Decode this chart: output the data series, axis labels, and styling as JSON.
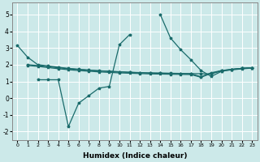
{
  "xlabel": "Humidex (Indice chaleur)",
  "xlim": [
    -0.5,
    23.5
  ],
  "ylim": [
    -2.5,
    5.7
  ],
  "yticks": [
    -2,
    -1,
    0,
    1,
    2,
    3,
    4,
    5
  ],
  "xticks": [
    0,
    1,
    2,
    3,
    4,
    5,
    6,
    7,
    8,
    9,
    10,
    11,
    12,
    13,
    14,
    15,
    16,
    17,
    18,
    19,
    20,
    21,
    22,
    23
  ],
  "bg_color": "#cce9e9",
  "line_color": "#1a6b6b",
  "grid_color": "#ffffff",
  "line_main": {
    "x": [
      0,
      1,
      2,
      3,
      4,
      5,
      6,
      7,
      8,
      9,
      10,
      11,
      12,
      13,
      14,
      15,
      16,
      17,
      18,
      19,
      20,
      21,
      22,
      23
    ],
    "y": [
      3.15,
      2.45,
      2.0,
      1.93,
      1.85,
      1.78,
      1.73,
      1.68,
      1.64,
      1.61,
      1.58,
      1.55,
      1.53,
      1.51,
      1.5,
      1.49,
      1.48,
      1.47,
      1.46,
      1.45,
      1.65,
      1.72,
      1.78,
      1.82
    ]
  },
  "line_spike": {
    "x": [
      2,
      3,
      4,
      5,
      6,
      7,
      8,
      9,
      10,
      11,
      12,
      13,
      14,
      15,
      16,
      17,
      18,
      19,
      20,
      21,
      22,
      23
    ],
    "y": [
      1.1,
      1.1,
      1.1,
      -1.7,
      -0.3,
      0.15,
      0.6,
      0.7,
      3.2,
      3.8,
      null,
      null,
      5.0,
      3.6,
      2.9,
      2.3,
      1.65,
      1.3,
      1.6,
      1.72,
      1.78,
      1.82
    ]
  },
  "line_flat1": {
    "x": [
      1,
      2,
      3,
      4,
      5,
      6,
      7,
      8,
      9,
      10,
      11,
      12,
      13,
      14,
      15,
      16,
      17,
      18,
      19,
      20,
      21,
      22,
      23
    ],
    "y": [
      2.0,
      1.95,
      1.88,
      1.82,
      1.76,
      1.71,
      1.67,
      1.63,
      1.6,
      1.57,
      1.54,
      1.52,
      1.5,
      1.49,
      1.48,
      1.47,
      1.46,
      1.28,
      1.52,
      1.65,
      1.72,
      1.78,
      1.82
    ]
  },
  "line_flat2": {
    "x": [
      1,
      2,
      3,
      4,
      5,
      6,
      7,
      8,
      9,
      10,
      11,
      12,
      13,
      14,
      15,
      16,
      17,
      18,
      19,
      20,
      21,
      22,
      23
    ],
    "y": [
      1.95,
      1.9,
      1.83,
      1.76,
      1.7,
      1.65,
      1.61,
      1.57,
      1.54,
      1.51,
      1.49,
      1.47,
      1.45,
      1.44,
      1.43,
      1.42,
      1.41,
      1.25,
      1.48,
      1.62,
      1.69,
      1.75,
      1.8
    ]
  }
}
